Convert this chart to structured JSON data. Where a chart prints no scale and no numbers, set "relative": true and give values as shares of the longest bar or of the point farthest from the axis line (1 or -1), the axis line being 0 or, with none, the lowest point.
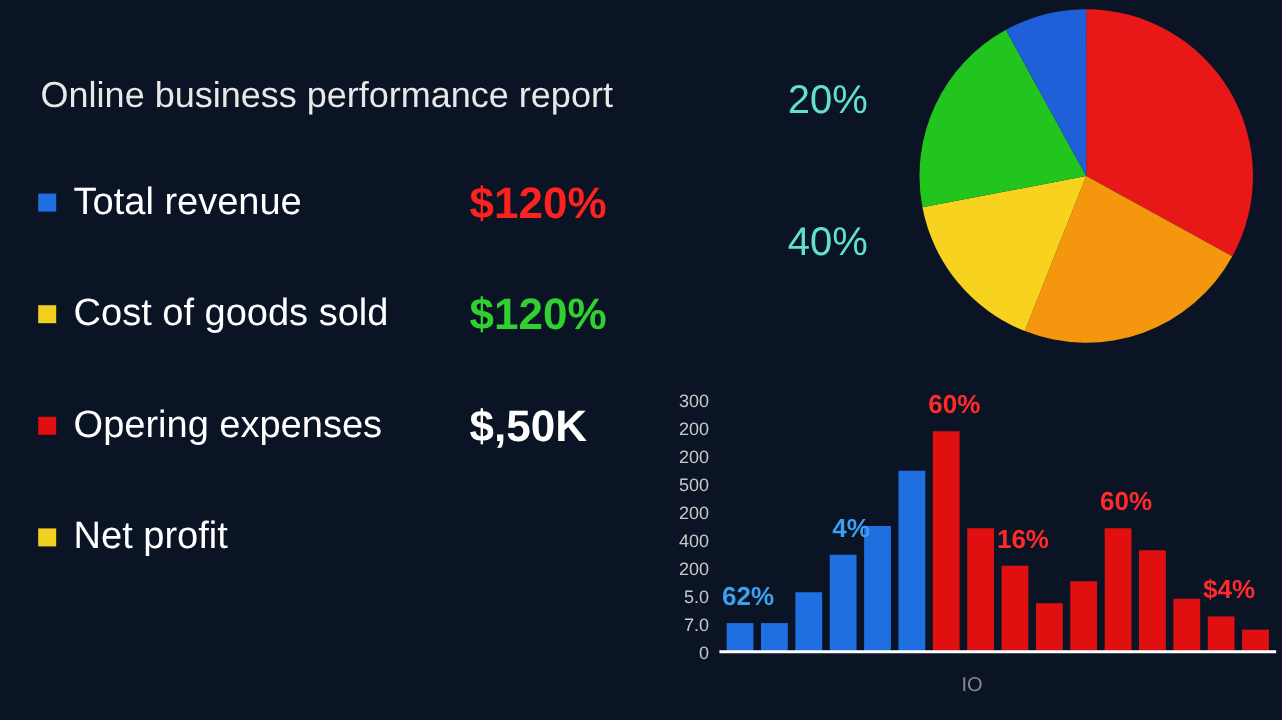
{
  "chart_data": [
    {
      "type": "other",
      "title": "Online business performance report",
      "categories": [
        "Total revenue",
        "Cost of goods sold",
        "Opering expenses",
        "Net profit"
      ],
      "colors": [
        "#1f6fe0",
        "#f2d020",
        "#e01010",
        "#f2d020"
      ],
      "annotations": [
        "$120%",
        "$120%",
        "$,50K"
      ]
    },
    {
      "type": "pie",
      "categories": [
        null,
        null,
        null,
        null,
        null
      ],
      "values": [
        33,
        23,
        16,
        20,
        8
      ],
      "colors": [
        "#e81818",
        "#f5960f",
        "#f7d21e",
        "#22c41e",
        "#1f5fd8"
      ],
      "annotations": [
        "20%",
        "40%"
      ]
    },
    {
      "type": "bar",
      "relative": true,
      "xlabel": "IO",
      "categories": [
        null,
        null,
        null,
        null,
        null,
        null,
        null,
        null,
        null,
        null,
        null,
        null,
        null,
        null,
        null,
        null
      ],
      "values": [
        0.13,
        0.13,
        0.27,
        0.44,
        0.57,
        0.82,
        1.0,
        0.56,
        0.39,
        0.22,
        0.32,
        0.56,
        0.46,
        0.24,
        0.16,
        0.1
      ],
      "colors": [
        "#1f6fe0",
        "#1f6fe0",
        "#1f6fe0",
        "#1f6fe0",
        "#1f6fe0",
        "#1f6fe0",
        "#e01010",
        "#e01010",
        "#e01010",
        "#e01010",
        "#e01010",
        "#e01010",
        "#e01010",
        "#e01010",
        "#e01010",
        "#e01010"
      ],
      "annotations": [
        "62%",
        "4%",
        "60%",
        "16%",
        "60%",
        "$4%",
        "0",
        "7.0",
        "5.0",
        "200",
        "400",
        "200",
        "500",
        "200",
        "200",
        "300"
      ]
    }
  ]
}
